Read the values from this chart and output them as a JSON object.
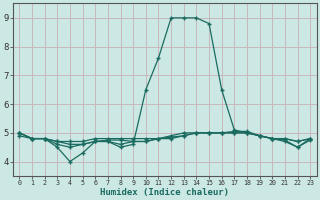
{
  "xlabel": "Humidex (Indice chaleur)",
  "xlim": [
    -0.5,
    23.5
  ],
  "ylim": [
    3.5,
    9.5
  ],
  "yticks": [
    4,
    5,
    6,
    7,
    8,
    9
  ],
  "xticks": [
    0,
    1,
    2,
    3,
    4,
    5,
    6,
    7,
    8,
    9,
    10,
    11,
    12,
    13,
    14,
    15,
    16,
    17,
    18,
    19,
    20,
    21,
    22,
    23
  ],
  "bg_color": "#cce8e4",
  "grid_color": "#c8b8bc",
  "line_color": "#1a6b60",
  "line1_x": [
    0,
    1,
    2,
    3,
    4,
    5,
    6,
    7,
    8,
    9,
    10,
    11,
    12,
    13,
    14,
    15,
    16,
    17,
    18,
    19,
    20,
    21,
    22,
    23
  ],
  "line1_y": [
    5.0,
    4.8,
    4.8,
    4.5,
    4.0,
    4.3,
    4.7,
    4.7,
    4.5,
    4.6,
    6.5,
    7.6,
    9.0,
    9.0,
    9.0,
    8.8,
    6.5,
    5.1,
    5.0,
    4.9,
    4.8,
    4.7,
    4.5,
    4.8
  ],
  "line2_x": [
    0,
    1,
    2,
    3,
    4,
    5,
    6,
    7,
    8,
    9,
    10,
    11,
    12,
    13,
    14,
    15,
    16,
    17,
    18,
    19,
    20,
    21,
    22,
    23
  ],
  "line2_y": [
    5.0,
    4.8,
    4.8,
    4.7,
    4.7,
    4.7,
    4.8,
    4.8,
    4.8,
    4.8,
    4.8,
    4.8,
    4.9,
    5.0,
    5.0,
    5.0,
    5.0,
    5.0,
    5.0,
    4.9,
    4.8,
    4.8,
    4.7,
    4.8
  ],
  "line3_x": [
    0,
    1,
    2,
    3,
    4,
    5,
    6,
    7,
    8,
    9,
    10,
    11,
    12,
    13,
    14,
    15,
    16,
    17,
    18,
    19,
    20,
    21,
    22,
    23
  ],
  "line3_y": [
    4.9,
    4.8,
    4.8,
    4.6,
    4.5,
    4.6,
    4.7,
    4.7,
    4.6,
    4.7,
    4.7,
    4.8,
    4.8,
    4.9,
    5.0,
    5.0,
    5.0,
    5.0,
    5.0,
    4.9,
    4.8,
    4.8,
    4.7,
    4.8
  ],
  "line4_x": [
    0,
    1,
    2,
    3,
    4,
    5,
    6,
    7,
    8,
    9,
    10,
    11,
    12,
    13,
    14,
    15,
    16,
    17,
    18,
    19,
    20,
    21,
    22,
    23
  ],
  "line4_y": [
    5.0,
    4.8,
    4.8,
    4.7,
    4.6,
    4.6,
    4.7,
    4.75,
    4.75,
    4.7,
    4.7,
    4.8,
    4.85,
    4.9,
    5.0,
    5.0,
    5.0,
    5.05,
    5.05,
    4.9,
    4.8,
    4.75,
    4.5,
    4.75
  ]
}
